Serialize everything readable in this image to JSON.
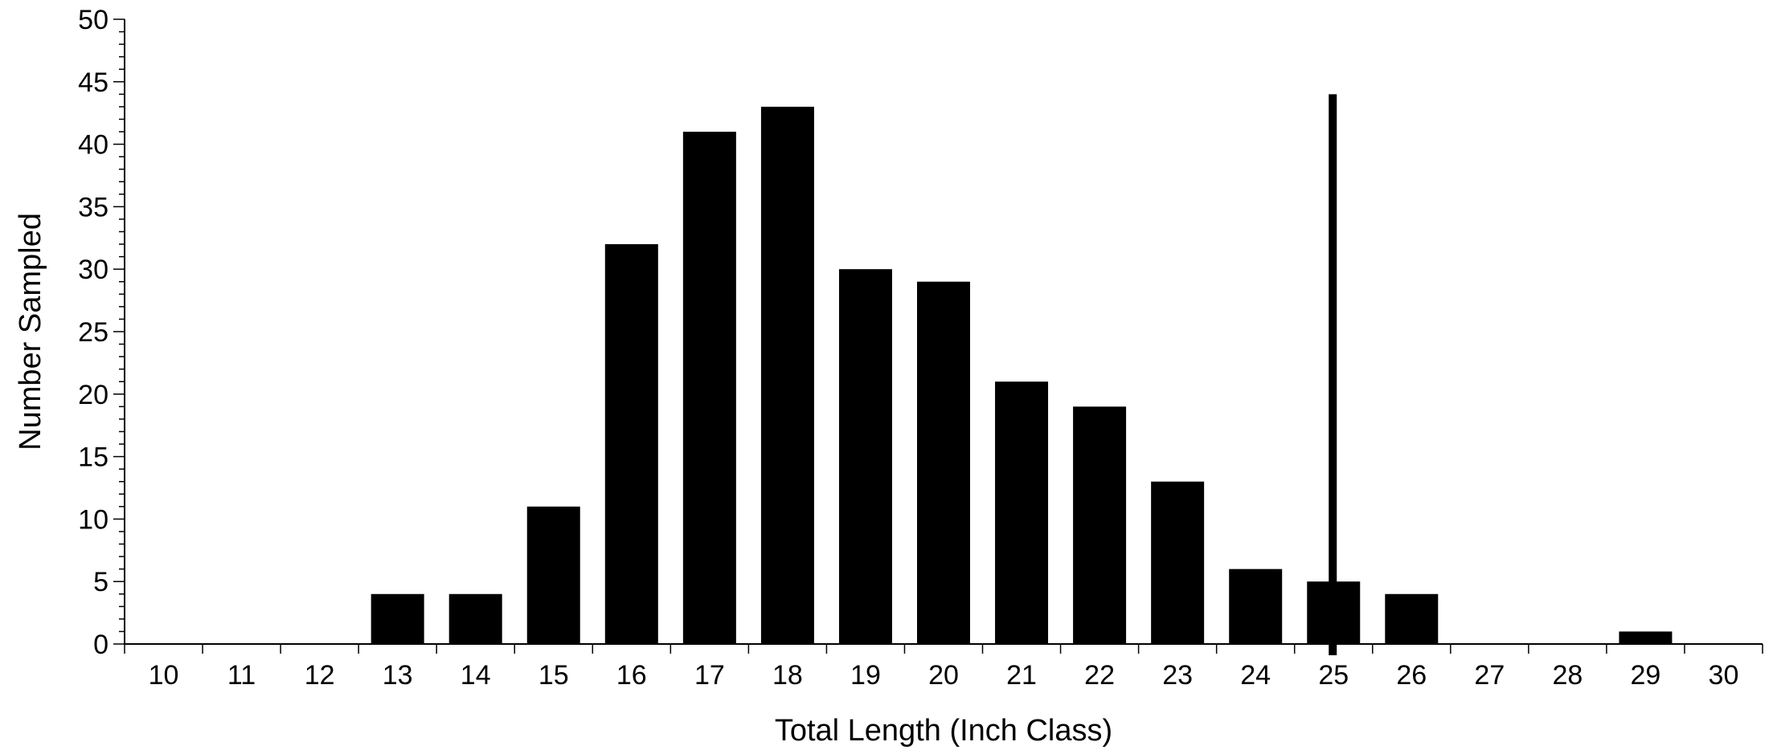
{
  "chart_data": {
    "type": "bar",
    "title": "",
    "xlabel": "Total Length (Inch Class)",
    "ylabel": "Number Sampled",
    "categories": [
      "10",
      "11",
      "12",
      "13",
      "14",
      "15",
      "16",
      "17",
      "18",
      "19",
      "20",
      "21",
      "22",
      "23",
      "24",
      "25",
      "26",
      "27",
      "28",
      "29",
      "30"
    ],
    "values": [
      0,
      0,
      0,
      4,
      4,
      11,
      32,
      41,
      43,
      30,
      29,
      21,
      19,
      13,
      6,
      5,
      4,
      0,
      0,
      1,
      0
    ],
    "ylim": [
      0,
      50
    ],
    "yticks": [
      0,
      5,
      10,
      15,
      20,
      25,
      30,
      35,
      40,
      45,
      50
    ],
    "y_minor_step": 1,
    "grid": false,
    "legend": "none",
    "bar_color": "#000000",
    "reference_line": {
      "x": 25.5,
      "y_top": 44,
      "color": "#000000"
    }
  }
}
